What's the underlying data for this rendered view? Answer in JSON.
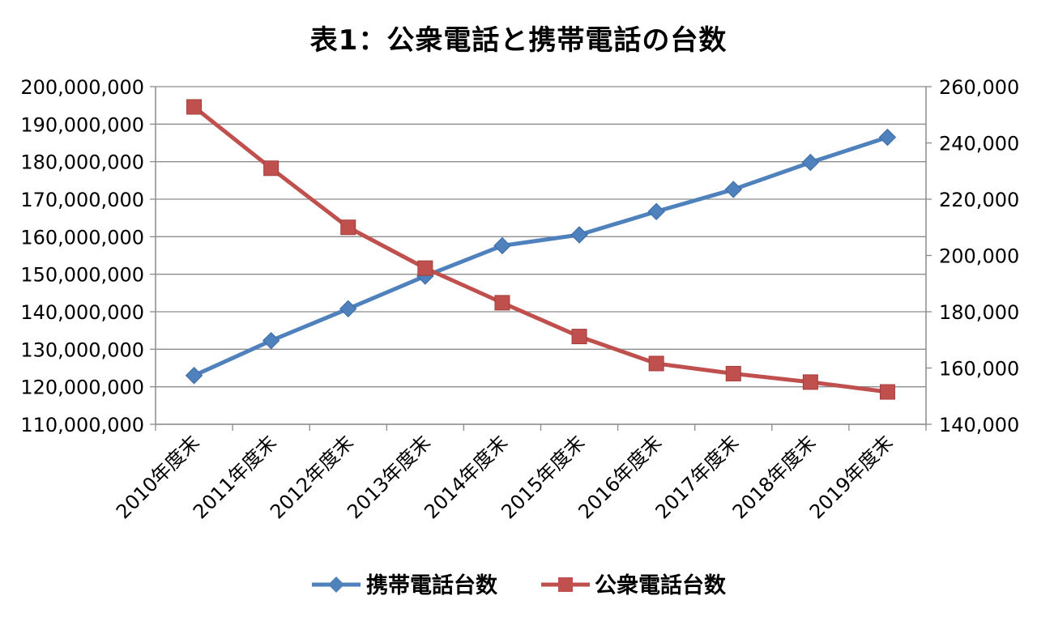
{
  "chart_data": {
    "type": "line",
    "title": "表1：公衆電話と携帯電話の台数",
    "categories": [
      "2010年度末",
      "2011年度末",
      "2012年度末",
      "2013年度末",
      "2014年度末",
      "2015年度末",
      "2016年度末",
      "2017年度末",
      "2018年度末",
      "2019年度末"
    ],
    "y_left": {
      "range": [
        110000000,
        200000000
      ],
      "ticks": [
        "110,000,000",
        "120,000,000",
        "130,000,000",
        "140,000,000",
        "150,000,000",
        "160,000,000",
        "170,000,000",
        "180,000,000",
        "190,000,000",
        "200,000,000"
      ],
      "tick_values": [
        110000000,
        120000000,
        130000000,
        140000000,
        150000000,
        160000000,
        170000000,
        180000000,
        190000000,
        200000000
      ]
    },
    "y_right": {
      "range": [
        140000,
        260000
      ],
      "ticks": [
        "140,000",
        "160,000",
        "180,000",
        "200,000",
        "220,000",
        "240,000",
        "260,000"
      ],
      "tick_values": [
        140000,
        160000,
        180000,
        200000,
        220000,
        240000,
        260000
      ]
    },
    "grid": true,
    "legend_position": "bottom",
    "series": [
      {
        "name": "携帯電話台数",
        "axis": "left",
        "color": "#4f81bd",
        "marker": "diamond",
        "values": [
          123000000,
          132300000,
          140800000,
          149500000,
          157600000,
          160500000,
          166700000,
          172600000,
          179800000,
          186500000
        ]
      },
      {
        "name": "公衆電話台数",
        "axis": "right",
        "color": "#c0504d",
        "marker": "square",
        "values": [
          252800,
          231000,
          210000,
          195500,
          183200,
          171200,
          161600,
          158000,
          155000,
          151500
        ]
      }
    ]
  }
}
